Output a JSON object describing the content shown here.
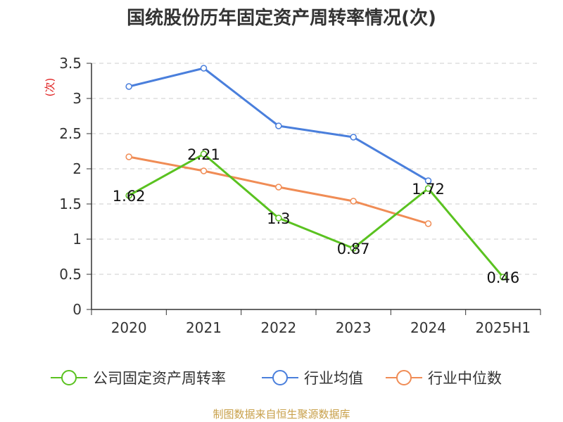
{
  "chart_data": {
    "type": "line",
    "title": "国统股份历年固定资产周转率情况(次)",
    "ylabel": "(次)",
    "xlabel": "",
    "categories": [
      "2020",
      "2021",
      "2022",
      "2023",
      "2024",
      "2025H1"
    ],
    "ylim": [
      0,
      3.5
    ],
    "yticks": [
      "0",
      "0.5",
      "1",
      "1.5",
      "2",
      "2.5",
      "3",
      "3.5"
    ],
    "grid": true,
    "legend_position": "bottom",
    "series": [
      {
        "name": "公司固定资产周转率",
        "color": "#5ac220",
        "values": [
          1.62,
          2.21,
          1.3,
          0.87,
          1.72,
          0.46
        ],
        "labels": [
          "1.62",
          "2.21",
          "1.3",
          "0.87",
          "1.72",
          "0.46"
        ]
      },
      {
        "name": "行业均值",
        "color": "#4a7fdc",
        "values": [
          3.17,
          3.43,
          2.61,
          2.45,
          1.83,
          null
        ]
      },
      {
        "name": "行业中位数",
        "color": "#f08c55",
        "values": [
          2.17,
          1.97,
          1.74,
          1.54,
          1.22,
          null
        ]
      }
    ]
  },
  "source_note": "制图数据来自恒生聚源数据库",
  "colors": {
    "axis": "#333333",
    "grid": "#cccccc",
    "ylabel": "#e02020"
  }
}
